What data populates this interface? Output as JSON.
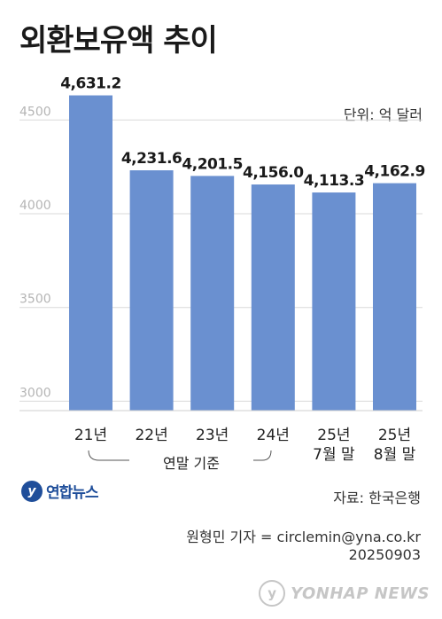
{
  "header": {
    "title": "외환보유액 추이",
    "unit": "단위: 억 달러"
  },
  "chart_data": {
    "type": "bar",
    "categories": [
      [
        "21년"
      ],
      [
        "22년"
      ],
      [
        "23년"
      ],
      [
        "24년"
      ],
      [
        "25년",
        "7월 말"
      ],
      [
        "25년",
        "8월 말"
      ]
    ],
    "values": [
      4631.2,
      4231.6,
      4201.5,
      4156.0,
      4113.3,
      4162.9
    ],
    "data_labels": [
      "4,631.2",
      "4,231.6",
      "4,201.5",
      "4,156.0",
      "4,113.3",
      "4,162.9"
    ],
    "y_ticks": [
      3000,
      3500,
      4000,
      4500
    ],
    "ylim": [
      2950,
      4700
    ],
    "grid": true,
    "bar_color": "#6a90d0",
    "bracket_label": "연말 기준"
  },
  "footer": {
    "logo_text": "연합뉴스",
    "source": "자료: 한국은행",
    "credit_line1": "원형민 기자 = circlemin@yna.co.kr",
    "credit_line2": "20250903",
    "watermark": "YONHAP NEWS"
  }
}
